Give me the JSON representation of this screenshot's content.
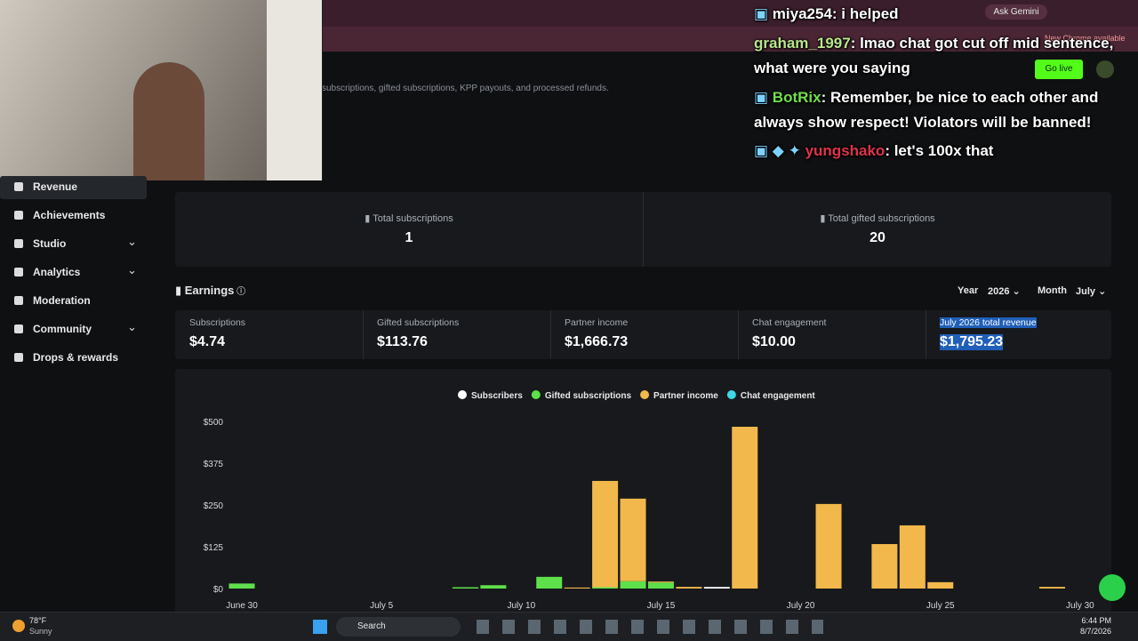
{
  "overlay_chat": [
    {
      "user": "miya254",
      "text": ": i helped"
    },
    {
      "user": "graham_1997",
      "text": ": lmao chat got cut off mid sentence, what were you saying"
    },
    {
      "user": "BotRix",
      "text": ": Remember, be nice to each other and always show respect! Violators will be banned!"
    },
    {
      "user": "yungshako",
      "text": ": let's 100x that"
    }
  ],
  "browser": {
    "ask_gemini": "Ask Gemini",
    "update": "New Chrome available"
  },
  "page_description": "subscriptions, gifted subscriptions, KPP payouts, and processed refunds.",
  "go_live": "Go live",
  "sidebar": [
    "Revenue",
    "Achievements",
    "Studio",
    "Analytics",
    "Moderation",
    "Community",
    "Drops & rewards"
  ],
  "totals": [
    {
      "label": "Total subscriptions",
      "value": 1
    },
    {
      "label": "Total gifted subscriptions",
      "value": 20
    }
  ],
  "earnings": {
    "title": "Earnings",
    "year_label": "Year",
    "year": "2026",
    "month_label": "Month",
    "month": "July",
    "summary": [
      {
        "label": "Subscriptions",
        "value": "$4.74"
      },
      {
        "label": "Gifted subscriptions",
        "value": "$113.76"
      },
      {
        "label": "Partner income",
        "value": "$1,666.73"
      },
      {
        "label": "Chat engagement",
        "value": "$10.00"
      },
      {
        "label": "July 2026 total revenue",
        "value": "$1,795.23"
      }
    ]
  },
  "chart_data": {
    "type": "bar",
    "stacked": true,
    "grid": false,
    "legend": "top",
    "categories": [
      "June 30",
      null,
      null,
      null,
      null,
      "July 5",
      null,
      null,
      null,
      null,
      "July 10",
      null,
      null,
      null,
      null,
      "July 15",
      null,
      null,
      null,
      null,
      "July 20",
      null,
      null,
      null,
      null,
      "July 25",
      null,
      null,
      null,
      null,
      "July 30",
      null
    ],
    "series": [
      {
        "name": "Subscribers",
        "color": "#ffffff",
        "values": [
          0,
          0,
          0,
          0,
          0,
          0,
          0,
          0,
          0,
          0,
          0,
          0,
          0,
          0,
          0,
          0,
          0,
          4.74,
          0,
          0,
          0,
          0,
          0,
          0,
          0,
          0,
          0,
          0,
          0,
          0,
          0,
          0
        ]
      },
      {
        "name": "Gifted subscriptions",
        "color": "#5ee04a",
        "values": [
          15,
          0,
          0,
          0,
          0,
          0,
          0,
          0,
          4,
          10,
          0,
          35,
          0,
          4,
          22,
          18,
          0,
          0,
          0,
          0,
          0,
          0,
          0,
          0,
          0,
          0,
          0,
          0,
          0,
          0,
          0,
          0
        ]
      },
      {
        "name": "Partner income",
        "color": "#f2b84b",
        "values": [
          0,
          0,
          0,
          0,
          0,
          0,
          0,
          0,
          0,
          0,
          0,
          0,
          3,
          318,
          247,
          3,
          5,
          0,
          484,
          0,
          0,
          253,
          0,
          133,
          189,
          19,
          0,
          0,
          0,
          5,
          0,
          0
        ]
      },
      {
        "name": "Chat engagement",
        "color": "#3fd6e6",
        "values": [
          0,
          0,
          0,
          0,
          0,
          0,
          0,
          0,
          0,
          0,
          0,
          0,
          0,
          0,
          0,
          0,
          0,
          0,
          0,
          0,
          0,
          0,
          0,
          0,
          0,
          0,
          0,
          0,
          0,
          0,
          0,
          0
        ]
      }
    ],
    "ylim": [
      0,
      500
    ],
    "yticks": [
      {
        "value": 0,
        "label": "$0"
      },
      {
        "value": 125,
        "label": "$125"
      },
      {
        "value": 250,
        "label": "$250"
      },
      {
        "value": 375,
        "label": "$375"
      },
      {
        "value": 500,
        "label": "$500"
      }
    ]
  },
  "taskbar": {
    "temp": "78°F",
    "weather": "Sunny",
    "search": "Search",
    "time": "6:44 PM",
    "date": "8/7/2026"
  }
}
